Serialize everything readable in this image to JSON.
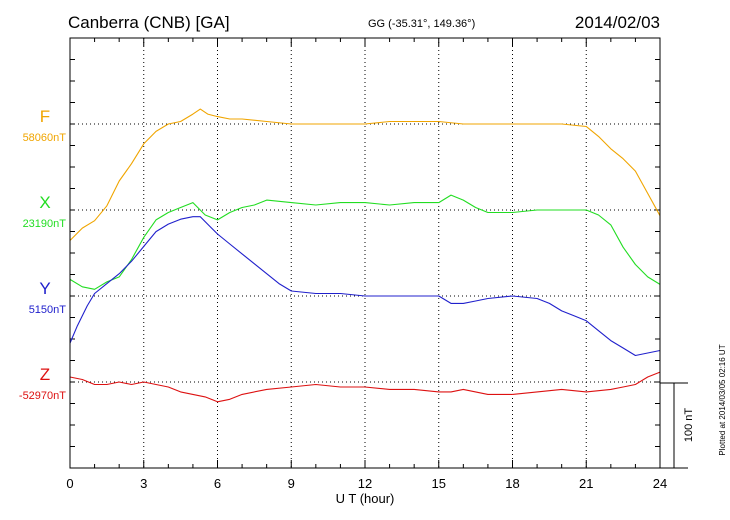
{
  "header": {
    "station": "Canberra (CNB)  [GA]",
    "coords": "GG (-35.31°, 149.36°)",
    "date": "2014/02/03"
  },
  "plotted_note": "Plotted at 2014/03/05 02:16 UT",
  "chart_data": {
    "type": "line",
    "xlabel": "U T (hour)",
    "xlim": [
      0,
      24
    ],
    "xticks": [
      0,
      3,
      6,
      9,
      12,
      15,
      18,
      21,
      24
    ],
    "scale_bar": {
      "label": "100 nT",
      "value_nT": 100
    },
    "units_per_row_nT": 34.7,
    "series": [
      {
        "name": "F",
        "baseline_label": "58060nT",
        "baseline_nT": 58060,
        "color": "#f0a500",
        "x": [
          0,
          0.5,
          1,
          1.5,
          2,
          2.5,
          3,
          3.5,
          4,
          4.5,
          5,
          5.3,
          5.6,
          6,
          6.5,
          7,
          8,
          9,
          10,
          11,
          12,
          13,
          14,
          15,
          16,
          17,
          18,
          19,
          20,
          21,
          21.5,
          22,
          22.5,
          23,
          23.5,
          24
        ],
        "y": [
          58013,
          58018,
          58021,
          58027,
          58037,
          58044,
          58052,
          58057,
          58060,
          58061,
          58064,
          58066,
          58064,
          58063,
          58062,
          58062,
          58061,
          58060,
          58060,
          58060,
          58060,
          58061,
          58061,
          58061,
          58060,
          58060,
          58060,
          58060,
          58060,
          58059,
          58055,
          58050,
          58046,
          58041,
          58032,
          58023
        ]
      },
      {
        "name": "X",
        "baseline_label": "23190nT",
        "baseline_nT": 23190,
        "color": "#22dd22",
        "x": [
          0,
          0.5,
          1,
          1.5,
          2,
          2.5,
          3,
          3.5,
          4,
          4.5,
          5,
          5.5,
          6,
          6.5,
          7,
          7.5,
          8,
          9,
          10,
          11,
          12,
          13,
          14,
          15,
          15.5,
          16,
          16.5,
          17,
          18,
          19,
          20,
          21,
          21.5,
          22,
          22.5,
          23,
          23.5,
          24
        ],
        "y": [
          23162,
          23159,
          23158,
          23161,
          23163,
          23170,
          23179,
          23186,
          23189,
          23191,
          23193,
          23188,
          23186,
          23189,
          23191,
          23192,
          23194,
          23193,
          23192,
          23193,
          23193,
          23192,
          23193,
          23193,
          23196,
          23194,
          23191,
          23189,
          23189,
          23190,
          23190,
          23190,
          23188,
          23184,
          23175,
          23168,
          23163,
          23160
        ]
      },
      {
        "name": "Y",
        "baseline_label": "5150nT",
        "baseline_nT": 5150,
        "color": "#2020cc",
        "x": [
          0,
          0.3,
          0.7,
          1,
          1.5,
          2,
          2.5,
          3,
          3.5,
          4,
          4.5,
          5,
          5.3,
          5.7,
          6,
          6.5,
          7,
          7.5,
          8,
          8.5,
          9,
          10,
          11,
          12,
          13,
          14,
          15,
          15.5,
          16,
          16.5,
          17,
          18,
          19,
          19.5,
          20,
          20.5,
          21,
          21.5,
          22,
          22.5,
          23,
          23.5,
          24
        ],
        "y": [
          5131,
          5138,
          5146,
          5151,
          5155,
          5159,
          5164,
          5170,
          5176,
          5179,
          5181,
          5182,
          5182,
          5178,
          5175,
          5171,
          5167,
          5163,
          5159,
          5155,
          5152,
          5151,
          5151,
          5150,
          5150,
          5150,
          5150,
          5147,
          5147,
          5148,
          5149,
          5150,
          5149,
          5147,
          5144,
          5142,
          5140,
          5136,
          5132,
          5129,
          5126,
          5127,
          5128
        ]
      },
      {
        "name": "Z",
        "baseline_label": "-52970nT",
        "baseline_nT": -52970,
        "color": "#dd1111",
        "x": [
          0,
          0.5,
          1,
          1.5,
          2,
          2.5,
          3,
          3.5,
          4,
          4.5,
          5,
          5.5,
          6,
          6.5,
          7,
          8,
          9,
          10,
          11,
          12,
          13,
          14,
          15,
          15.5,
          16,
          16.5,
          17,
          18,
          19,
          20,
          21,
          22,
          22.5,
          23,
          23.5,
          24
        ],
        "y": [
          -52968,
          -52969,
          -52971,
          -52971,
          -52970,
          -52971,
          -52970,
          -52971,
          -52972,
          -52974,
          -52975,
          -52976,
          -52978,
          -52977,
          -52975,
          -52973,
          -52972,
          -52971,
          -52972,
          -52972,
          -52973,
          -52973,
          -52974,
          -52974,
          -52973,
          -52974,
          -52975,
          -52975,
          -52974,
          -52973,
          -52974,
          -52973,
          -52972,
          -52971,
          -52968,
          -52966
        ]
      }
    ]
  }
}
